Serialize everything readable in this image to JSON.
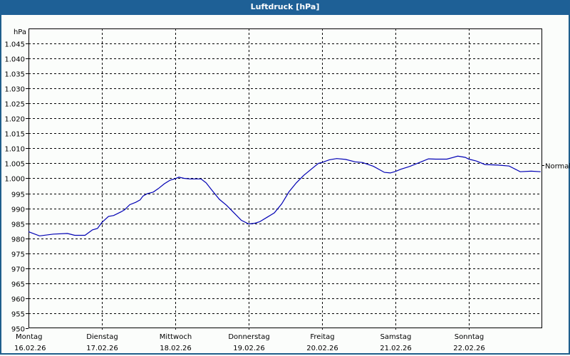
{
  "window": {
    "title": "Luftdruck [hPa]"
  },
  "colors": {
    "titlebar": "#1e6096",
    "line": "#0000b4",
    "grid": "#000000",
    "background": "#fbfdfb"
  },
  "chart_data": {
    "type": "line",
    "title": "Luftdruck [hPa]",
    "ylabel": "hPa",
    "xlabel": "",
    "ylim": [
      950,
      1045
    ],
    "yticks": [
      950,
      955,
      960,
      965,
      970,
      975,
      980,
      985,
      990,
      995,
      1000,
      1005,
      1010,
      1015,
      1020,
      1025,
      1030,
      1035,
      1040,
      1045
    ],
    "ytick_labels": [
      "950",
      "955",
      "960",
      "965",
      "970",
      "975",
      "980",
      "985",
      "990",
      "995",
      "1.000",
      "1.005",
      "1.010",
      "1.015",
      "1.020",
      "1.025",
      "1.030",
      "1.035",
      "1.040",
      "1.045"
    ],
    "reference_line": {
      "label": "Normal",
      "value": 1004.3
    },
    "x_days": [
      {
        "weekday": "Montag",
        "date": "16.02.26"
      },
      {
        "weekday": "Dienstag",
        "date": "17.02.26"
      },
      {
        "weekday": "Mittwoch",
        "date": "18.02.26"
      },
      {
        "weekday": "Donnerstag",
        "date": "19.02.26"
      },
      {
        "weekday": "Freitag",
        "date": "20.02.26"
      },
      {
        "weekday": "Samstag",
        "date": "21.02.26"
      },
      {
        "weekday": "Sonntag",
        "date": "22.02.26"
      }
    ],
    "grid": true,
    "series": [
      {
        "name": "Luftdruck",
        "x_days": [
          0,
          0.15,
          0.34,
          0.53,
          0.63,
          0.77,
          0.87,
          0.94,
          1.0,
          1.09,
          1.16,
          1.26,
          1.31,
          1.38,
          1.46,
          1.52,
          1.56,
          1.62,
          1.7,
          1.77,
          1.85,
          1.93,
          2.0,
          2.05,
          2.12,
          2.2,
          2.35,
          2.42,
          2.5,
          2.6,
          2.7,
          2.8,
          2.9,
          3.0,
          3.08,
          3.15,
          3.25,
          3.35,
          3.45,
          3.55,
          3.65,
          3.75,
          3.85,
          3.95,
          4.0,
          4.1,
          4.2,
          4.32,
          4.45,
          4.55,
          4.7,
          4.85,
          4.93,
          5.0,
          5.07,
          5.2,
          5.35,
          5.45,
          5.55,
          5.7,
          5.85,
          5.95,
          6.0,
          6.1,
          6.22,
          6.4,
          6.55,
          6.7,
          6.85,
          6.98
        ],
        "values": [
          982.2,
          980.8,
          981.4,
          981.6,
          981.0,
          981.0,
          982.8,
          983.3,
          985.3,
          987.3,
          987.6,
          988.8,
          989.5,
          991.2,
          992.0,
          992.8,
          994.1,
          994.9,
          995.4,
          996.6,
          998.2,
          999.4,
          999.9,
          1000.4,
          1000.0,
          999.8,
          999.8,
          998.5,
          996.0,
          993.0,
          991.0,
          988.5,
          986.0,
          984.8,
          985.0,
          985.5,
          987.0,
          988.5,
          991.5,
          995.5,
          998.5,
          1001.0,
          1003.0,
          1005.0,
          1005.3,
          1006.2,
          1006.6,
          1006.3,
          1005.5,
          1005.3,
          1004.0,
          1002.0,
          1001.8,
          1002.3,
          1003.0,
          1004.0,
          1005.5,
          1006.5,
          1006.4,
          1006.4,
          1007.4,
          1007.0,
          1006.4,
          1005.8,
          1004.6,
          1004.4,
          1004.1,
          1002.2,
          1002.4,
          1002.2
        ]
      }
    ]
  }
}
